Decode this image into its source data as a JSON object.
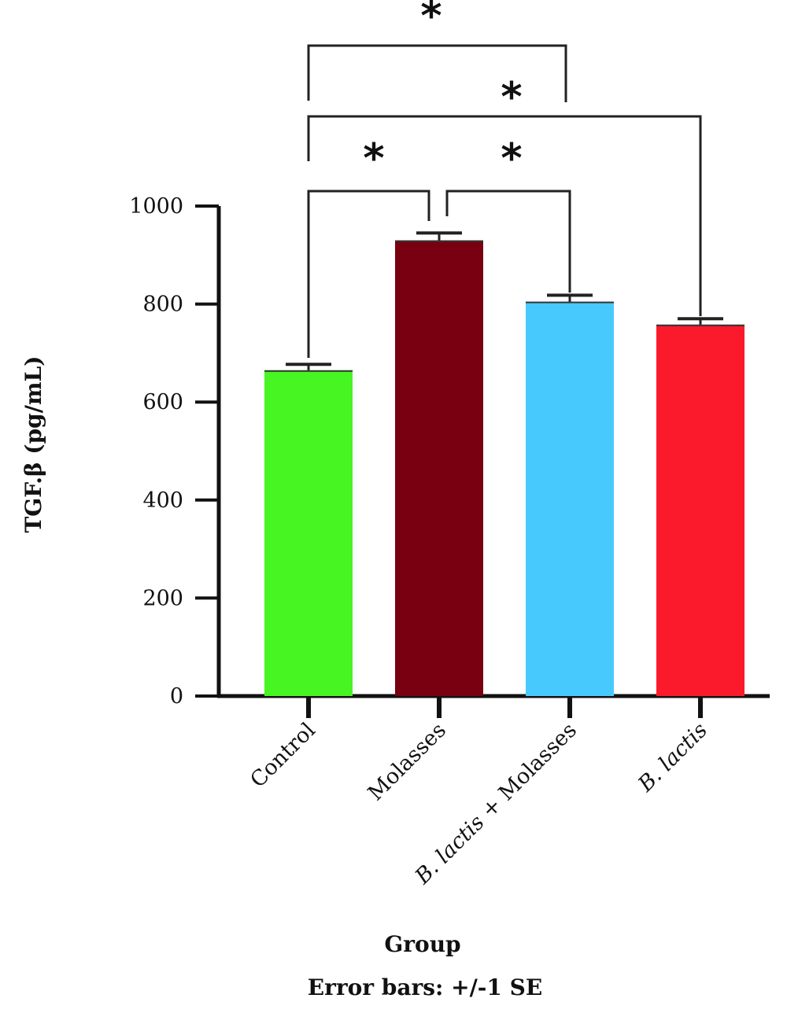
{
  "chart_data": {
    "type": "bar",
    "categories": [
      "Control",
      "Molasses",
      "B. lactis + Molasses",
      "B. lactis"
    ],
    "category_parts": [
      [
        {
          "text": "Control",
          "italic": false
        }
      ],
      [
        {
          "text": "Molasses",
          "italic": false
        }
      ],
      [
        {
          "text": "B. lactis",
          "italic": true
        },
        {
          "text": " + Molasses",
          "italic": false
        }
      ],
      [
        {
          "text": "B. lactis",
          "italic": true
        }
      ]
    ],
    "values": [
      665,
      930,
      805,
      758
    ],
    "errors": [
      12,
      15,
      13,
      12
    ],
    "colors": [
      "#47f522",
      "#780010",
      "#48c9fd",
      "#fb1a2c"
    ],
    "ylim": [
      0,
      1000
    ],
    "yticks": [
      0,
      200,
      400,
      600,
      800,
      1000
    ],
    "ylabel": "TGF.β (pg/mL)",
    "xlabel": "Group",
    "footnote": "Error bars: +/-1 SE",
    "significance": [
      {
        "groups": [
          0,
          2
        ],
        "label": "*"
      },
      {
        "groups": [
          0,
          3
        ],
        "label": "*"
      },
      {
        "groups": [
          0,
          1
        ],
        "label": "*"
      },
      {
        "groups": [
          1,
          2
        ],
        "label": "*"
      }
    ],
    "grid": false
  }
}
